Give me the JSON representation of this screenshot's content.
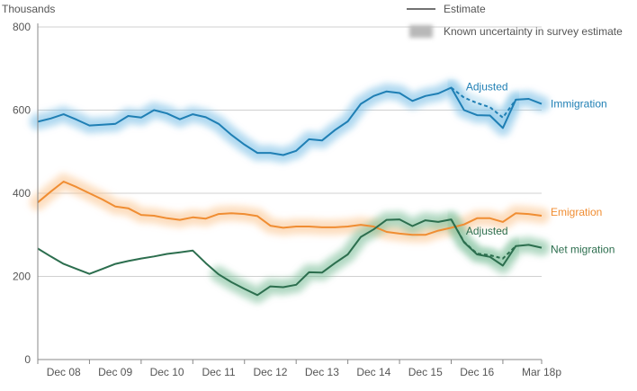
{
  "chart_data": {
    "type": "line",
    "ylabel": "Thousands",
    "ylim": [
      0,
      800
    ],
    "y_ticks": [
      0,
      200,
      400,
      600,
      800
    ],
    "x_ticks": [
      "Dec 08",
      "Dec 09",
      "Dec 10",
      "Dec 11",
      "Dec 12",
      "Dec 13",
      "Dec 14",
      "Dec 15",
      "Dec 16",
      "Mar 18p"
    ],
    "grid": true,
    "legend": {
      "placement": "top-right",
      "estimate_label": "Estimate",
      "uncertainty_label": "Known uncertainty in survey estimate"
    },
    "series": [
      {
        "name": "Immigration",
        "color": "#1f7fb4",
        "uncertainty_color": "#7cc0e6",
        "values": [
          572,
          580,
          590,
          577,
          563,
          565,
          567,
          586,
          582,
          600,
          592,
          578,
          590,
          583,
          567,
          540,
          517,
          497,
          497,
          492,
          502,
          530,
          527,
          552,
          573,
          615,
          634,
          645,
          641,
          622,
          634,
          640,
          654,
          600,
          588,
          587,
          557,
          625,
          627,
          615
        ],
        "uncertainty_start": 0,
        "adjusted": {
          "label": "Adjusted",
          "start_index": 32,
          "values": [
            654,
            630,
            617,
            607,
            582,
            625
          ]
        }
      },
      {
        "name": "Emigration",
        "color": "#f08d32",
        "uncertainty_color": "#fbc897",
        "values": [
          378,
          404,
          428,
          415,
          400,
          385,
          368,
          364,
          348,
          346,
          340,
          336,
          342,
          339,
          350,
          352,
          350,
          345,
          322,
          317,
          320,
          320,
          318,
          318,
          320,
          324,
          320,
          307,
          303,
          300,
          300,
          310,
          317,
          325,
          340,
          340,
          331,
          352,
          350,
          346
        ],
        "uncertainty_start": 0
      },
      {
        "name": "Net migration",
        "color": "#2c6e4e",
        "uncertainty_color": "#7fbf9c",
        "values": [
          267,
          248,
          230,
          218,
          206,
          218,
          230,
          237,
          243,
          248,
          254,
          258,
          262,
          232,
          205,
          186,
          170,
          155,
          176,
          174,
          180,
          210,
          209,
          232,
          253,
          295,
          313,
          336,
          337,
          321,
          335,
          331,
          337,
          282,
          253,
          247,
          226,
          273,
          276,
          269
        ],
        "uncertainty_start": 14,
        "adjusted": {
          "label": "Adjusted",
          "start_index": 32,
          "values": [
            337,
            283,
            255,
            251,
            243,
            273
          ]
        }
      }
    ]
  }
}
